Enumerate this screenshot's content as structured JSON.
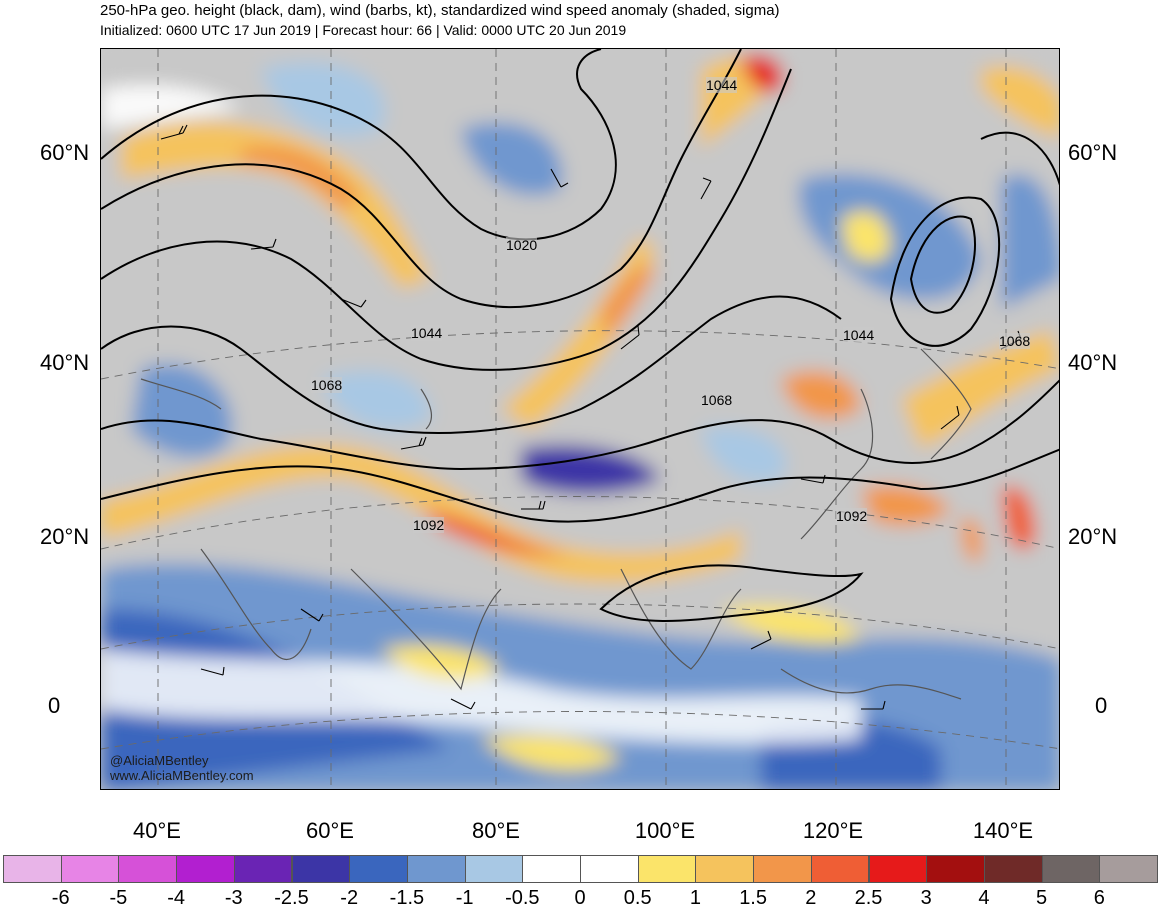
{
  "header": {
    "title": "250-hPa geo. height (black, dam), wind (barbs, kt), standardized wind speed anomaly (shaded, sigma)",
    "subtitle": "Initialized: 0600 UTC 17 Jun 2019 | Forecast hour: 66 | Valid: 0000 UTC 20 Jun 2019"
  },
  "map": {
    "lat_labels": [
      "60°N",
      "40°N",
      "20°N",
      "0"
    ],
    "lon_labels": [
      "40°E",
      "60°E",
      "80°E",
      "100°E",
      "120°E",
      "140°E"
    ],
    "contour_labels": [
      "1044",
      "1020",
      "1044",
      "1068",
      "1068",
      "1044",
      "1068",
      "1092",
      "1092"
    ],
    "credit_handle": "@AliciaMBentley",
    "credit_site": "www.AliciaMBentley.com"
  },
  "colorbar": {
    "labels": [
      "-6",
      "-5",
      "-4",
      "-3",
      "-2.5",
      "-2",
      "-1.5",
      "-1",
      "-0.5",
      "0",
      "0.5",
      "1",
      "1.5",
      "2",
      "2.5",
      "3",
      "4",
      "5",
      "6"
    ],
    "colors": [
      "#e8b4e8",
      "#e784e6",
      "#d651d8",
      "#b21fd0",
      "#6a24b4",
      "#3c35a6",
      "#3a66be",
      "#6f97cf",
      "#a8c8e4",
      "#ffffff",
      "#ffffff",
      "#fbe46a",
      "#f5c35d",
      "#f2964a",
      "#ef5e35",
      "#e61a1a",
      "#a30f0f",
      "#6f2a28",
      "#6e6564",
      "#a69c9c"
    ]
  }
}
